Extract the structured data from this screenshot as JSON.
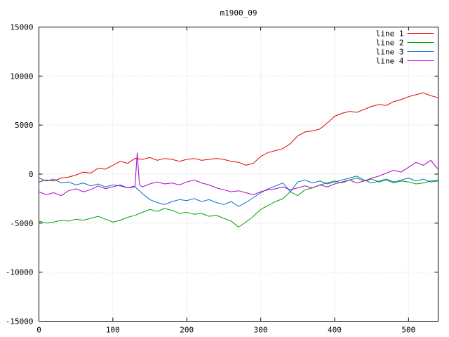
{
  "title": "m1900_09",
  "colors": {
    "background": "#ffffff",
    "border": "#000000",
    "grid": "#c8c8c8",
    "text": "#000000"
  },
  "chart_data": {
    "type": "line",
    "title": "m1900_09",
    "xlabel": "",
    "ylabel": "",
    "xlim": [
      0,
      540
    ],
    "ylim": [
      -15000,
      15000
    ],
    "xticks": [
      0,
      100,
      200,
      300,
      400,
      500
    ],
    "yticks": [
      -15000,
      -10000,
      -5000,
      0,
      5000,
      10000,
      15000
    ],
    "grid": true,
    "grid_style": "dotted",
    "legend_position": "top-right-inside",
    "series": [
      {
        "name": "line 1",
        "color": "#e00000",
        "points": [
          [
            0,
            -800
          ],
          [
            10,
            -600
          ],
          [
            20,
            -700
          ],
          [
            30,
            -400
          ],
          [
            40,
            -300
          ],
          [
            50,
            -100
          ],
          [
            60,
            200
          ],
          [
            70,
            100
          ],
          [
            80,
            600
          ],
          [
            90,
            500
          ],
          [
            100,
            900
          ],
          [
            110,
            1300
          ],
          [
            120,
            1100
          ],
          [
            130,
            1600
          ],
          [
            140,
            1500
          ],
          [
            150,
            1700
          ],
          [
            160,
            1400
          ],
          [
            170,
            1600
          ],
          [
            180,
            1500
          ],
          [
            190,
            1300
          ],
          [
            200,
            1500
          ],
          [
            210,
            1600
          ],
          [
            220,
            1400
          ],
          [
            230,
            1500
          ],
          [
            240,
            1600
          ],
          [
            250,
            1500
          ],
          [
            260,
            1300
          ],
          [
            270,
            1200
          ],
          [
            280,
            900
          ],
          [
            290,
            1100
          ],
          [
            300,
            1800
          ],
          [
            310,
            2200
          ],
          [
            320,
            2400
          ],
          [
            330,
            2600
          ],
          [
            340,
            3100
          ],
          [
            350,
            3900
          ],
          [
            360,
            4300
          ],
          [
            370,
            4400
          ],
          [
            380,
            4600
          ],
          [
            390,
            5200
          ],
          [
            400,
            5900
          ],
          [
            410,
            6200
          ],
          [
            420,
            6400
          ],
          [
            430,
            6300
          ],
          [
            440,
            6600
          ],
          [
            450,
            6900
          ],
          [
            460,
            7100
          ],
          [
            470,
            7000
          ],
          [
            480,
            7400
          ],
          [
            490,
            7600
          ],
          [
            500,
            7900
          ],
          [
            510,
            8100
          ],
          [
            520,
            8300
          ],
          [
            530,
            8000
          ],
          [
            540,
            7800
          ]
        ]
      },
      {
        "name": "line 2",
        "color": "#00a000",
        "points": [
          [
            0,
            -4800
          ],
          [
            10,
            -5000
          ],
          [
            20,
            -4900
          ],
          [
            30,
            -4700
          ],
          [
            40,
            -4800
          ],
          [
            50,
            -4600
          ],
          [
            60,
            -4700
          ],
          [
            70,
            -4500
          ],
          [
            80,
            -4300
          ],
          [
            90,
            -4600
          ],
          [
            100,
            -4900
          ],
          [
            110,
            -4700
          ],
          [
            120,
            -4400
          ],
          [
            130,
            -4200
          ],
          [
            140,
            -3900
          ],
          [
            150,
            -3600
          ],
          [
            160,
            -3800
          ],
          [
            170,
            -3500
          ],
          [
            180,
            -3700
          ],
          [
            190,
            -4000
          ],
          [
            200,
            -3900
          ],
          [
            210,
            -4100
          ],
          [
            220,
            -4000
          ],
          [
            230,
            -4300
          ],
          [
            240,
            -4200
          ],
          [
            250,
            -4500
          ],
          [
            260,
            -4800
          ],
          [
            270,
            -5400
          ],
          [
            280,
            -4900
          ],
          [
            290,
            -4300
          ],
          [
            300,
            -3600
          ],
          [
            310,
            -3200
          ],
          [
            320,
            -2800
          ],
          [
            330,
            -2500
          ],
          [
            340,
            -1800
          ],
          [
            350,
            -2200
          ],
          [
            360,
            -1600
          ],
          [
            370,
            -1400
          ],
          [
            380,
            -1100
          ],
          [
            390,
            -900
          ],
          [
            400,
            -700
          ],
          [
            410,
            -900
          ],
          [
            420,
            -600
          ],
          [
            430,
            -400
          ],
          [
            440,
            -700
          ],
          [
            450,
            -500
          ],
          [
            460,
            -800
          ],
          [
            470,
            -600
          ],
          [
            480,
            -900
          ],
          [
            490,
            -700
          ],
          [
            500,
            -800
          ],
          [
            510,
            -1000
          ],
          [
            520,
            -900
          ],
          [
            530,
            -700
          ],
          [
            540,
            -600
          ]
        ]
      },
      {
        "name": "line 3",
        "color": "#0070d0",
        "points": [
          [
            0,
            -400
          ],
          [
            10,
            -700
          ],
          [
            20,
            -500
          ],
          [
            30,
            -900
          ],
          [
            40,
            -800
          ],
          [
            50,
            -1100
          ],
          [
            60,
            -900
          ],
          [
            70,
            -1200
          ],
          [
            80,
            -1000
          ],
          [
            90,
            -1300
          ],
          [
            100,
            -1100
          ],
          [
            110,
            -1200
          ],
          [
            120,
            -1400
          ],
          [
            130,
            -1300
          ],
          [
            140,
            -2000
          ],
          [
            150,
            -2600
          ],
          [
            160,
            -2900
          ],
          [
            170,
            -3100
          ],
          [
            180,
            -2800
          ],
          [
            190,
            -2600
          ],
          [
            200,
            -2700
          ],
          [
            210,
            -2500
          ],
          [
            220,
            -2800
          ],
          [
            230,
            -2600
          ],
          [
            240,
            -2900
          ],
          [
            250,
            -3100
          ],
          [
            260,
            -2800
          ],
          [
            270,
            -3300
          ],
          [
            280,
            -2900
          ],
          [
            290,
            -2400
          ],
          [
            300,
            -1900
          ],
          [
            310,
            -1500
          ],
          [
            320,
            -1200
          ],
          [
            330,
            -900
          ],
          [
            340,
            -1800
          ],
          [
            350,
            -800
          ],
          [
            360,
            -600
          ],
          [
            370,
            -900
          ],
          [
            380,
            -700
          ],
          [
            390,
            -1000
          ],
          [
            400,
            -800
          ],
          [
            410,
            -600
          ],
          [
            420,
            -400
          ],
          [
            430,
            -200
          ],
          [
            440,
            -600
          ],
          [
            450,
            -900
          ],
          [
            460,
            -700
          ],
          [
            470,
            -500
          ],
          [
            480,
            -800
          ],
          [
            490,
            -600
          ],
          [
            500,
            -400
          ],
          [
            510,
            -700
          ],
          [
            520,
            -500
          ],
          [
            530,
            -800
          ],
          [
            540,
            -700
          ]
        ]
      },
      {
        "name": "line 4",
        "color": "#b000d0",
        "points": [
          [
            0,
            -1800
          ],
          [
            10,
            -2100
          ],
          [
            20,
            -1900
          ],
          [
            30,
            -2200
          ],
          [
            40,
            -1700
          ],
          [
            50,
            -1500
          ],
          [
            60,
            -1800
          ],
          [
            70,
            -1600
          ],
          [
            80,
            -1200
          ],
          [
            90,
            -1500
          ],
          [
            100,
            -1300
          ],
          [
            110,
            -1100
          ],
          [
            120,
            -1400
          ],
          [
            130,
            -1200
          ],
          [
            133,
            2200
          ],
          [
            136,
            -1100
          ],
          [
            140,
            -1300
          ],
          [
            150,
            -1000
          ],
          [
            160,
            -800
          ],
          [
            170,
            -1000
          ],
          [
            180,
            -900
          ],
          [
            190,
            -1100
          ],
          [
            200,
            -800
          ],
          [
            210,
            -600
          ],
          [
            220,
            -900
          ],
          [
            230,
            -1100
          ],
          [
            240,
            -1400
          ],
          [
            250,
            -1600
          ],
          [
            260,
            -1800
          ],
          [
            270,
            -1700
          ],
          [
            280,
            -1900
          ],
          [
            290,
            -2100
          ],
          [
            300,
            -1800
          ],
          [
            310,
            -1600
          ],
          [
            320,
            -1500
          ],
          [
            330,
            -1300
          ],
          [
            340,
            -1600
          ],
          [
            350,
            -1400
          ],
          [
            360,
            -1200
          ],
          [
            370,
            -1400
          ],
          [
            380,
            -1100
          ],
          [
            390,
            -1300
          ],
          [
            400,
            -1000
          ],
          [
            410,
            -800
          ],
          [
            420,
            -600
          ],
          [
            430,
            -900
          ],
          [
            440,
            -700
          ],
          [
            450,
            -400
          ],
          [
            460,
            -200
          ],
          [
            470,
            100
          ],
          [
            480,
            400
          ],
          [
            490,
            200
          ],
          [
            500,
            700
          ],
          [
            510,
            1200
          ],
          [
            520,
            900
          ],
          [
            530,
            1400
          ],
          [
            540,
            500
          ]
        ]
      }
    ]
  }
}
